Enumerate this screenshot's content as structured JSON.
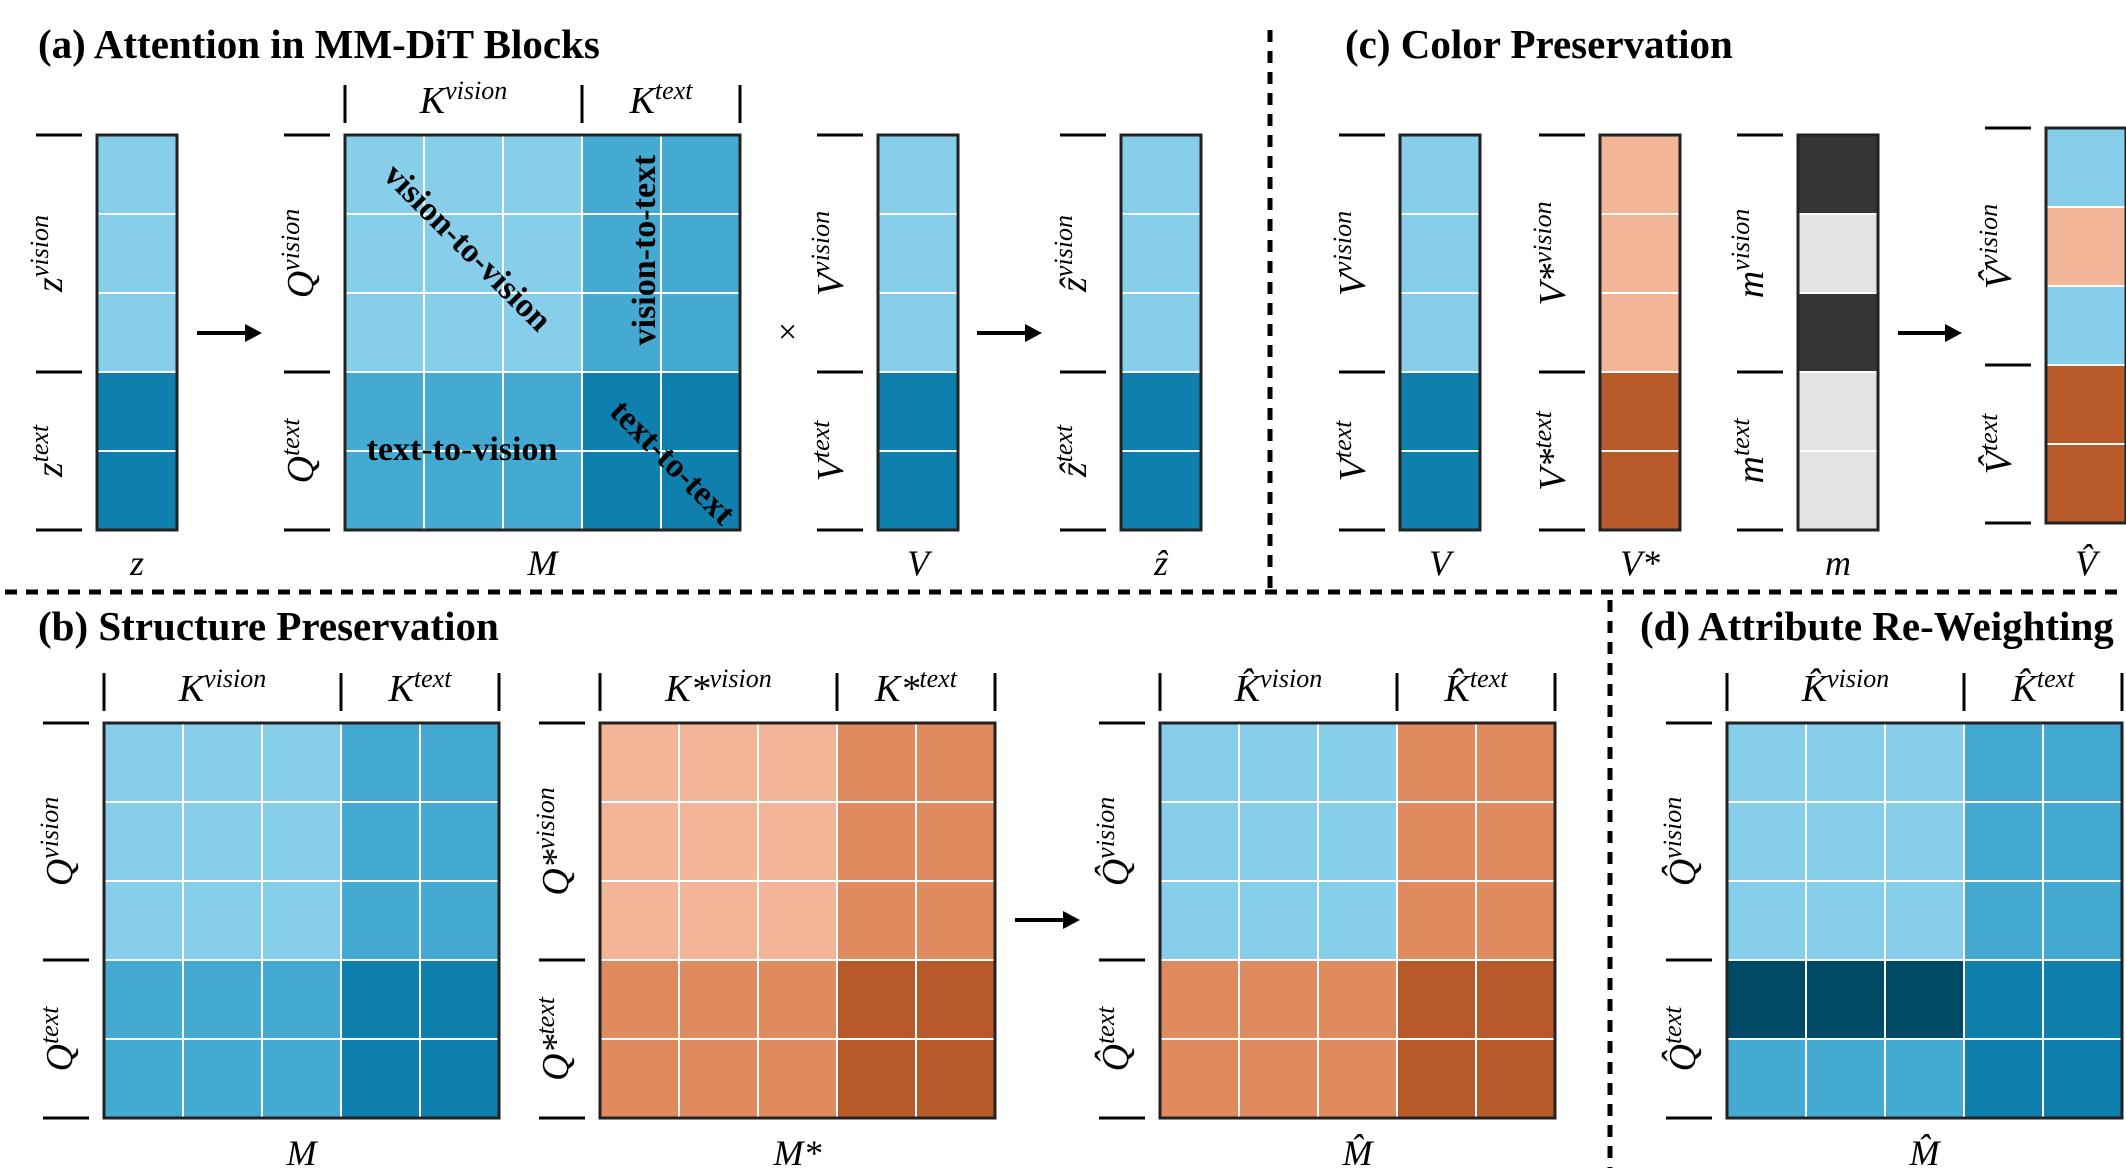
{
  "colors": {
    "light_blue": "#87CEEB",
    "mid_blue": "#44AAD2",
    "dark_blue": "#0F7FAD",
    "darkest_blue": "#004A66",
    "light_orange": "#F3B597",
    "mid_orange": "#E08A5F",
    "dark_orange": "#B8592A",
    "mask_dark": "#353535",
    "mask_light": "#E3E3E3",
    "grid_line": "#ffffff",
    "outline": "#222222"
  },
  "panels": {
    "a": {
      "title": "(a) Attention in MM-DiT Blocks",
      "z": {
        "caption": "z",
        "vision_label": "z",
        "vision_sup": "vision",
        "text_label": "z",
        "text_sup": "text"
      },
      "M": {
        "caption": "M",
        "col_vision": "K",
        "col_vision_sup": "vision",
        "col_text": "K",
        "col_text_sup": "text",
        "row_vision": "Q",
        "row_vision_sup": "vision",
        "row_text": "Q",
        "row_text_sup": "text",
        "region_vv": "vision-to-vision",
        "region_vt": "vision-to-text",
        "region_tv": "text-to-vision",
        "region_tt": "text-to-text"
      },
      "times": "×",
      "V": {
        "caption": "V",
        "vision_label": "V",
        "vision_sup": "vision",
        "text_label": "V",
        "text_sup": "text"
      },
      "zhat": {
        "caption": "ẑ",
        "vision_label": "ẑ",
        "vision_sup": "vision",
        "text_label": "ẑ",
        "text_sup": "text"
      }
    },
    "b": {
      "title": "(b) Structure Preservation",
      "M": {
        "caption": "M",
        "col_vision": "K",
        "col_vision_sup": "vision",
        "col_text": "K",
        "col_text_sup": "text",
        "row_vision": "Q",
        "row_vision_sup": "vision",
        "row_text": "Q",
        "row_text_sup": "text"
      },
      "Mstar": {
        "caption": "M*",
        "col_vision": "K*",
        "col_vision_sup": "vision",
        "col_text": "K*",
        "col_text_sup": "text",
        "row_vision": "Q*",
        "row_vision_sup": "vision",
        "row_text": "Q*",
        "row_text_sup": "text"
      },
      "Mhat": {
        "caption": "M̂",
        "col_vision": "K̂",
        "col_vision_sup": "vision",
        "col_text": "K̂",
        "col_text_sup": "text",
        "row_vision": "Q̂",
        "row_vision_sup": "vision",
        "row_text": "Q̂",
        "row_text_sup": "text"
      }
    },
    "c": {
      "title": "(c) Color Preservation",
      "V": {
        "caption": "V",
        "vision_label": "V",
        "vision_sup": "vision",
        "text_label": "V",
        "text_sup": "text"
      },
      "Vstar": {
        "caption": "V*",
        "vision_label": "V*",
        "vision_sup": "vision",
        "text_label": "V*",
        "text_sup": "text"
      },
      "m": {
        "caption": "m",
        "vision_label": "m",
        "vision_sup": "vision",
        "text_label": "m",
        "text_sup": "text"
      },
      "Vhat": {
        "caption": "V̂",
        "vision_label": "V̂",
        "vision_sup": "vision",
        "text_label": "V̂",
        "text_sup": "text"
      }
    },
    "d": {
      "title": "(d) Attribute Re-Weighting",
      "Mhat": {
        "caption": "M̂",
        "col_vision": "K̂",
        "col_vision_sup": "vision",
        "col_text": "K̂",
        "col_text_sup": "text",
        "row_vision": "Q̂",
        "row_vision_sup": "vision",
        "row_text": "Q̂",
        "row_text_sup": "text"
      }
    }
  }
}
